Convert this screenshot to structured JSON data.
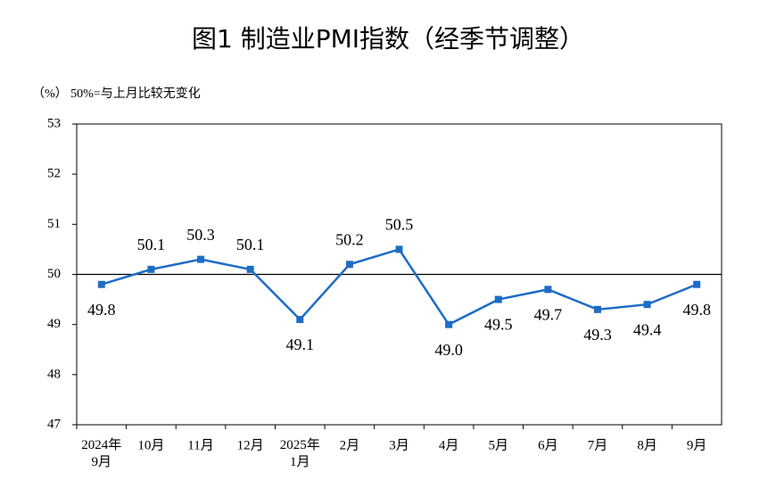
{
  "chart_data": {
    "type": "line",
    "title": "图1  制造业PMI指数（经季节调整）",
    "subtitle": "（%）  50%=与上月比较无变化",
    "categories": [
      "2024年\n9月",
      "10月",
      "11月",
      "12月",
      "2025年\n1月",
      "2月",
      "3月",
      "4月",
      "5月",
      "6月",
      "7月",
      "8月",
      "9月"
    ],
    "values": [
      49.8,
      50.1,
      50.3,
      50.1,
      49.1,
      50.2,
      50.5,
      49.0,
      49.5,
      49.7,
      49.3,
      49.4,
      49.8
    ],
    "value_labels": [
      "49.8",
      "50.1",
      "50.3",
      "50.1",
      "49.1",
      "50.2",
      "50.5",
      "49.0",
      "49.5",
      "49.7",
      "49.3",
      "49.4",
      "49.8"
    ],
    "color": "#1f6cc4",
    "ylim": [
      47,
      53
    ],
    "yticks": [
      47,
      48,
      49,
      50,
      51,
      52,
      53
    ],
    "reference_line": 50,
    "grid": false
  }
}
